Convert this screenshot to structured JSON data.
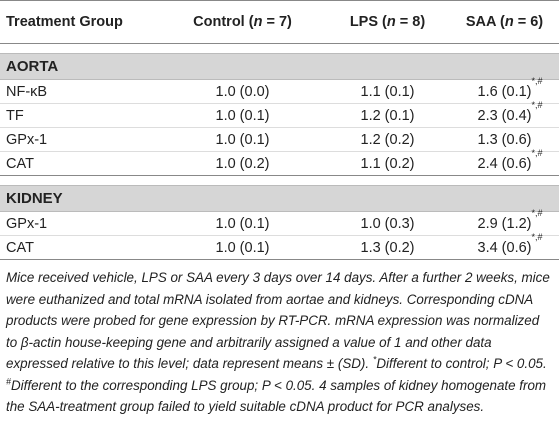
{
  "table": {
    "headers": [
      [
        "Treatment Group"
      ],
      [
        "Control (",
        "n",
        " = 7)"
      ],
      [
        "LPS (",
        "n",
        " = 8)"
      ],
      [
        "SAA (",
        "n",
        " = 6)"
      ]
    ],
    "sections": [
      {
        "title": "AORTA",
        "rows": [
          [
            "NF-κB",
            {
              "text": "1.0 (0.0)"
            },
            {
              "text": "1.1 (0.1)"
            },
            {
              "text": "1.6 (0.1)",
              "sup": "*,#"
            }
          ],
          [
            "TF",
            {
              "text": "1.0 (0.1)"
            },
            {
              "text": "1.2 (0.1)"
            },
            {
              "text": "2.3 (0.4)",
              "sup": "*,#"
            }
          ],
          [
            "GPx-1",
            {
              "text": "1.0 (0.1)"
            },
            {
              "text": "1.2 (0.2)"
            },
            {
              "text": "1.3 (0.6)"
            }
          ],
          [
            "CAT",
            {
              "text": "1.0 (0.2)"
            },
            {
              "text": "1.1 (0.2)"
            },
            {
              "text": "2.4 (0.6)",
              "sup": "*,#"
            }
          ]
        ]
      },
      {
        "title": "KIDNEY",
        "rows": [
          [
            "GPx-1",
            {
              "text": "1.0 (0.1)"
            },
            {
              "text": "1.0 (0.3)"
            },
            {
              "text": "2.9 (1.2)",
              "sup": "*,#"
            }
          ],
          [
            "CAT",
            {
              "text": "1.0 (0.1)"
            },
            {
              "text": "1.3 (0.2)"
            },
            {
              "text": "3.4 (0.6)",
              "sup": "*,#"
            }
          ]
        ]
      }
    ],
    "note": [
      {
        "t": "Mice received vehicle, LPS or SAA every 3 days over 14 days. After a further 2 weeks, mice were euthanized and total mRNA isolated from aortae and kidneys. Corresponding cDNA products were probed for gene expression by RT-PCR. mRNA expression was normalized to β-actin house-keeping gene and arbitrarily assigned a value of 1 and other data expressed relative to this level; data represent means ± (SD). "
      },
      {
        "t": "*",
        "sup": true
      },
      {
        "t": "Different to control; P < 0.05. "
      },
      {
        "t": "#",
        "sup": true
      },
      {
        "t": "Different to the corresponding LPS group; P < 0.05. 4 samples of kidney homogenate from the SAA-treatment group failed to yield suitable cDNA product for PCR analyses."
      }
    ]
  }
}
